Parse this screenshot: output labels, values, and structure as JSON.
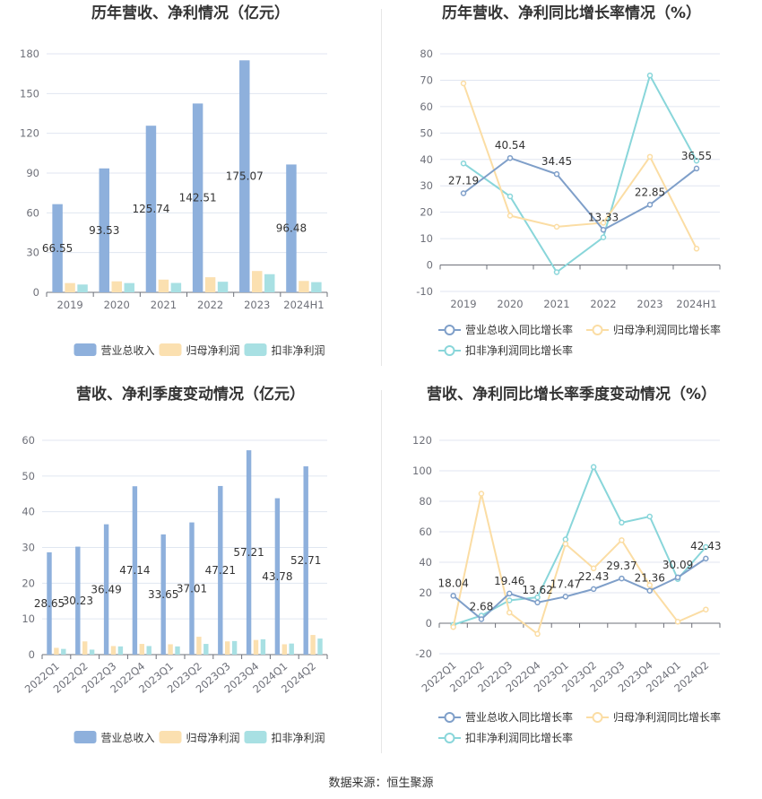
{
  "colors": {
    "revenue": "#8eb0dc",
    "parent": "#fbe0b0",
    "deducted": "#a8e0e3",
    "revenue_line": "#7f9fc9",
    "parent_line": "#fbdda4",
    "deducted_line": "#89d6da"
  },
  "footer": "数据来源：恒生聚源",
  "chart_data": [
    {
      "type": "bar",
      "title": "历年营收、净利情况（亿元）",
      "categories": [
        "2019",
        "2020",
        "2021",
        "2022",
        "2023",
        "2024H1"
      ],
      "ylim": [
        0,
        180
      ],
      "yticks": [
        "0",
        "30",
        "60",
        "90",
        "120",
        "150",
        "180"
      ],
      "series": [
        {
          "name": "营业总收入",
          "values": [
            66.55,
            93.53,
            125.74,
            142.51,
            175.07,
            96.48
          ],
          "labels": [
            "66.55",
            "93.53",
            "125.74",
            "142.51",
            "175.07",
            "96.48"
          ]
        },
        {
          "name": "归母净利润",
          "values": [
            7.0,
            8.3,
            9.6,
            11.4,
            16.1,
            8.6
          ]
        },
        {
          "name": "扣非净利润",
          "values": [
            5.9,
            7.0,
            7.1,
            8.0,
            13.7,
            7.7
          ]
        }
      ],
      "legend": "bottom"
    },
    {
      "type": "line",
      "title": "历年营收、净利同比增长率情况（%）",
      "categories": [
        "2019",
        "2020",
        "2021",
        "2022",
        "2023",
        "2024H1"
      ],
      "ylim": [
        -10,
        80
      ],
      "yticks": [
        "-10",
        "0",
        "10",
        "20",
        "30",
        "40",
        "50",
        "60",
        "70",
        "80"
      ],
      "series": [
        {
          "name": "营业总收入同比增长率",
          "values": [
            27.19,
            40.54,
            34.45,
            13.33,
            22.85,
            36.55
          ],
          "labels": [
            "27.19",
            "40.54",
            "34.45",
            "13.33",
            "22.85",
            "36.55"
          ]
        },
        {
          "name": "归母净利润同比增长率",
          "values": [
            68.8,
            18.7,
            14.5,
            16.0,
            41.0,
            6.2
          ]
        },
        {
          "name": "扣非净利润同比增长率",
          "values": [
            38.5,
            26.0,
            -2.7,
            10.5,
            71.8,
            39.5
          ]
        }
      ],
      "legend": "bottom"
    },
    {
      "type": "bar",
      "title": "营收、净利季度变动情况（亿元）",
      "categories": [
        "2022Q1",
        "2022Q2",
        "2022Q3",
        "2022Q4",
        "2023Q1",
        "2023Q2",
        "2023Q3",
        "2023Q4",
        "2024Q1",
        "2024Q2"
      ],
      "ylim": [
        0,
        60
      ],
      "yticks": [
        "0",
        "10",
        "20",
        "30",
        "40",
        "50",
        "60"
      ],
      "series": [
        {
          "name": "营业总收入",
          "values": [
            28.65,
            30.23,
            36.49,
            47.14,
            33.65,
            37.01,
            47.21,
            57.21,
            43.78,
            52.71
          ],
          "labels": [
            "28.65",
            "30.23",
            "36.49",
            "47.14",
            "33.65",
            "37.01",
            "47.21",
            "57.21",
            "43.78",
            "52.71"
          ]
        },
        {
          "name": "归母净利润",
          "values": [
            1.9,
            3.7,
            2.4,
            3.0,
            2.9,
            5.0,
            3.7,
            4.1,
            2.9,
            5.5
          ]
        },
        {
          "name": "扣非净利润",
          "values": [
            1.6,
            1.4,
            2.3,
            2.4,
            2.3,
            3.0,
            3.8,
            4.3,
            3.1,
            4.5
          ]
        }
      ],
      "legend": "bottom"
    },
    {
      "type": "line",
      "title": "营收、净利同比增长率季度变动情况（%）",
      "categories": [
        "2022Q1",
        "2022Q2",
        "2022Q3",
        "2022Q4",
        "2023Q1",
        "2023Q2",
        "2023Q3",
        "2023Q4",
        "2024Q1",
        "2024Q2"
      ],
      "ylim": [
        -20,
        120
      ],
      "yticks": [
        "-20",
        "0",
        "20",
        "40",
        "60",
        "80",
        "100",
        "120"
      ],
      "series": [
        {
          "name": "营业总收入同比增长率",
          "values": [
            18.04,
            2.68,
            19.46,
            13.62,
            17.47,
            22.43,
            29.37,
            21.36,
            30.09,
            42.43
          ],
          "labels": [
            "18.04",
            "2.68",
            "19.46",
            "13.62",
            "17.47",
            "22.43",
            "29.37",
            "21.36",
            "30.09",
            "42.43"
          ]
        },
        {
          "name": "归母净利润同比增长率",
          "values": [
            -2.5,
            85.0,
            7.0,
            -7.0,
            52.0,
            36.0,
            54.5,
            25.0,
            1.0,
            9.0
          ]
        },
        {
          "name": "扣非净利润同比增长率",
          "values": [
            -1.0,
            5.0,
            15.0,
            17.0,
            55.0,
            102.5,
            66.0,
            70.0,
            29.0,
            50.0
          ]
        }
      ],
      "legend": "bottom"
    }
  ]
}
